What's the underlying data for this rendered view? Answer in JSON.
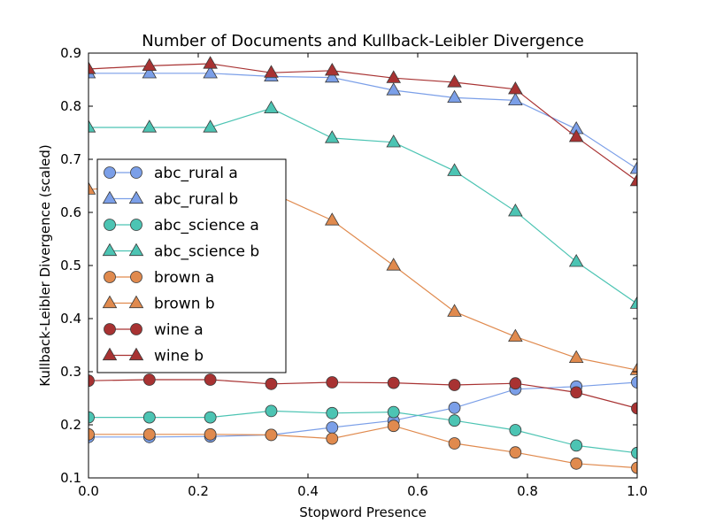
{
  "chart_data": {
    "type": "line",
    "title": "Number of Documents and Kullback-Leibler Divergence",
    "xlabel": "Stopword Presence",
    "ylabel": "Kullback-Leibler Divergence (scaled)",
    "xlim": [
      0.0,
      1.0
    ],
    "ylim": [
      0.1,
      0.9
    ],
    "xticks": [
      0.0,
      0.2,
      0.4,
      0.6,
      0.8,
      1.0
    ],
    "xtick_labels": [
      "0.0",
      "0.2",
      "0.4",
      "0.6",
      "0.8",
      "1.0"
    ],
    "yticks": [
      0.1,
      0.2,
      0.3,
      0.4,
      0.5,
      0.6,
      0.7,
      0.8,
      0.9
    ],
    "ytick_labels": [
      "0.1",
      "0.2",
      "0.3",
      "0.4",
      "0.5",
      "0.6",
      "0.7",
      "0.8",
      "0.9"
    ],
    "grid": false,
    "legend_position": "center-left",
    "x": [
      0.0,
      0.111,
      0.222,
      0.333,
      0.444,
      0.556,
      0.667,
      0.778,
      0.889,
      1.0
    ],
    "series": [
      {
        "name": "abc_rural a",
        "marker": "circle",
        "color": "#7b9fe8",
        "values": [
          0.177,
          0.177,
          0.178,
          0.181,
          0.195,
          0.208,
          0.232,
          0.267,
          0.272,
          0.28
        ]
      },
      {
        "name": "abc_rural b",
        "marker": "triangle",
        "color": "#7b9fe8",
        "values": [
          0.862,
          0.862,
          0.862,
          0.856,
          0.854,
          0.83,
          0.816,
          0.811,
          0.757,
          0.682
        ]
      },
      {
        "name": "abc_science a",
        "marker": "circle",
        "color": "#4cc4b3",
        "values": [
          0.214,
          0.214,
          0.214,
          0.226,
          0.222,
          0.224,
          0.208,
          0.19,
          0.161,
          0.147
        ]
      },
      {
        "name": "abc_science b",
        "marker": "triangle",
        "color": "#4cc4b3",
        "values": [
          0.76,
          0.76,
          0.76,
          0.796,
          0.74,
          0.732,
          0.678,
          0.602,
          0.507,
          0.428
        ]
      },
      {
        "name": "brown a",
        "marker": "circle",
        "color": "#e08a4e",
        "values": [
          0.182,
          0.182,
          0.182,
          0.181,
          0.174,
          0.198,
          0.165,
          0.148,
          0.127,
          0.119
        ]
      },
      {
        "name": "brown b",
        "marker": "triangle",
        "color": "#e08a4e",
        "values": [
          0.643,
          0.652,
          0.652,
          0.637,
          0.585,
          0.5,
          0.413,
          0.366,
          0.326,
          0.303
        ]
      },
      {
        "name": "wine a",
        "marker": "circle",
        "color": "#a83232",
        "values": [
          0.283,
          0.285,
          0.285,
          0.277,
          0.28,
          0.279,
          0.275,
          0.278,
          0.261,
          0.231
        ]
      },
      {
        "name": "wine b",
        "marker": "triangle",
        "color": "#a83232",
        "values": [
          0.87,
          0.876,
          0.88,
          0.863,
          0.867,
          0.853,
          0.845,
          0.832,
          0.742,
          0.659
        ]
      }
    ]
  }
}
